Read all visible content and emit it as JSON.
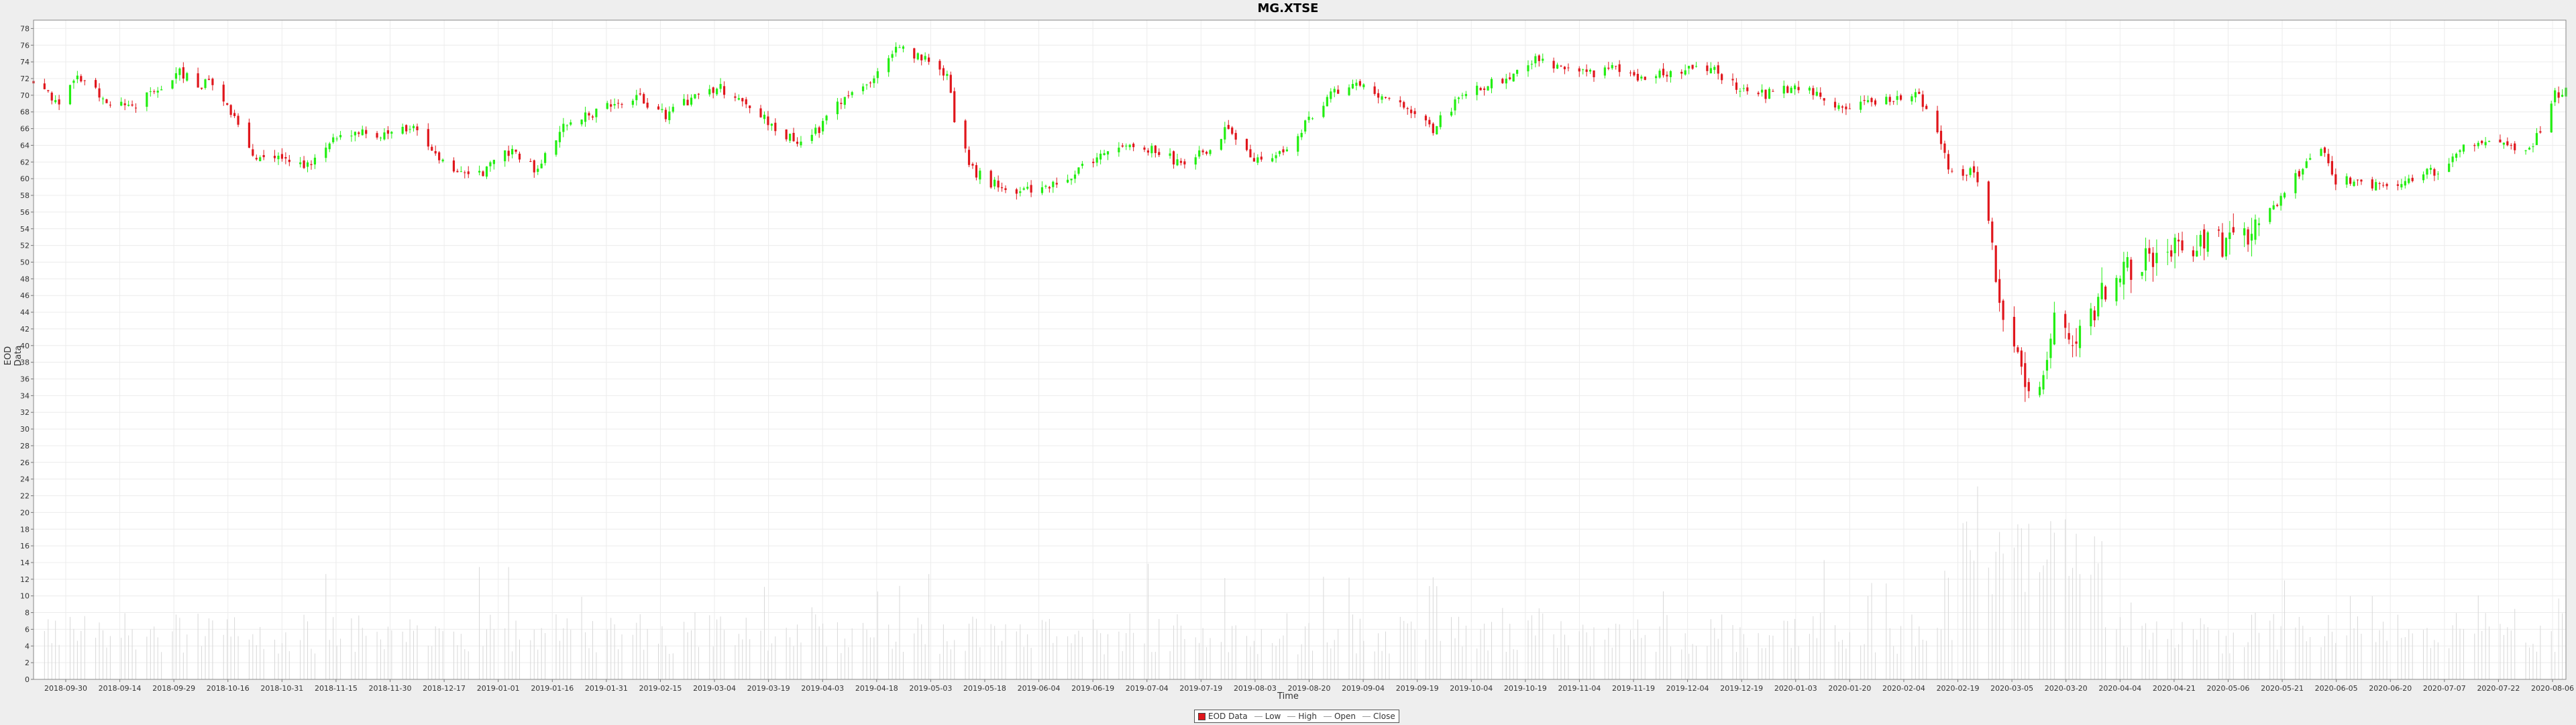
{
  "colors": {
    "up": "#22ee11",
    "down": "#e0161c",
    "volume": "#d8d8d8",
    "grid": "#ececec",
    "plot_bg": "#ffffff",
    "axis": "#777777"
  },
  "chart_data": {
    "type": "candlestick",
    "title": "MG.XTSE",
    "xlabel": "Time",
    "ylabel": "EOD Data",
    "ylim": [
      0,
      79
    ],
    "y_ticks": [
      0,
      2,
      4,
      6,
      8,
      10,
      12,
      14,
      16,
      18,
      20,
      22,
      24,
      26,
      28,
      30,
      32,
      34,
      36,
      38,
      40,
      42,
      44,
      46,
      48,
      50,
      52,
      54,
      56,
      58,
      60,
      62,
      64,
      66,
      68,
      70,
      72,
      74,
      76,
      78
    ],
    "x_start": "2018-09-21",
    "x_end": "2020-08-14",
    "x_ticks": [
      "2018-09-30",
      "2018-09-14",
      "2018-09-29",
      "2018-10-16",
      "2018-10-31",
      "2018-11-15",
      "2018-11-30",
      "2018-12-17",
      "2019-01-01",
      "2019-01-16",
      "2019-01-31",
      "2019-02-15",
      "2019-03-04",
      "2019-03-19",
      "2019-04-03",
      "2019-04-18",
      "2019-05-03",
      "2019-05-18",
      "2019-06-04",
      "2019-06-19",
      "2019-07-04",
      "2019-07-19",
      "2019-08-03",
      "2019-08-20",
      "2019-09-04",
      "2019-09-19",
      "2019-10-04",
      "2019-10-19",
      "2019-11-04",
      "2019-11-19",
      "2019-12-04",
      "2019-12-19",
      "2020-01-03",
      "2020-01-20",
      "2020-02-04",
      "2020-02-19",
      "2020-03-05",
      "2020-03-20",
      "2020-04-04",
      "2020-04-21",
      "2020-05-06",
      "2020-05-21",
      "2020-06-05",
      "2020-06-20",
      "2020-07-07",
      "2020-07-22",
      "2020-08-06"
    ],
    "legend": {
      "position": "bottom",
      "entries": [
        "EOD Data",
        "Low",
        "High",
        "Open",
        "Close"
      ]
    },
    "grid": true,
    "anchors": [
      [
        "2018-09-21",
        71.5
      ],
      [
        "2018-09-28",
        69.0
      ],
      [
        "2018-10-03",
        72.5
      ],
      [
        "2018-10-10",
        69.5
      ],
      [
        "2018-10-17",
        68.5
      ],
      [
        "2018-10-24",
        70.5
      ],
      [
        "2018-10-31",
        73.0
      ],
      [
        "2018-11-06",
        70.5
      ],
      [
        "2018-11-07",
        72.5
      ],
      [
        "2018-11-14",
        68.0
      ],
      [
        "2018-11-21",
        62.5
      ],
      [
        "2018-11-28",
        63.0
      ],
      [
        "2018-12-05",
        61.5
      ],
      [
        "2018-12-12",
        64.5
      ],
      [
        "2018-12-19",
        65.5
      ],
      [
        "2018-12-26",
        65.0
      ],
      [
        "2019-01-02",
        66.5
      ],
      [
        "2019-01-09",
        62.5
      ],
      [
        "2019-01-16",
        60.5
      ],
      [
        "2019-01-23",
        61.0
      ],
      [
        "2019-01-30",
        63.5
      ],
      [
        "2019-02-06",
        61.0
      ],
      [
        "2019-02-13",
        66.5
      ],
      [
        "2019-02-20",
        67.5
      ],
      [
        "2019-02-27",
        69.0
      ],
      [
        "2019-03-06",
        69.5
      ],
      [
        "2019-03-13",
        67.5
      ],
      [
        "2019-03-20",
        69.5
      ],
      [
        "2019-03-27",
        71.0
      ],
      [
        "2019-04-03",
        69.5
      ],
      [
        "2019-04-10",
        67.0
      ],
      [
        "2019-04-17",
        64.5
      ],
      [
        "2019-04-24",
        66.0
      ],
      [
        "2019-05-01",
        70.0
      ],
      [
        "2019-05-08",
        72.0
      ],
      [
        "2019-05-15",
        75.5
      ],
      [
        "2019-05-22",
        74.5
      ],
      [
        "2019-05-29",
        72.0
      ],
      [
        "2019-06-01",
        65.0
      ],
      [
        "2019-06-05",
        61.0
      ],
      [
        "2019-06-12",
        59.0
      ],
      [
        "2019-06-19",
        58.5
      ],
      [
        "2019-06-26",
        59.0
      ],
      [
        "2019-07-03",
        60.5
      ],
      [
        "2019-07-10",
        63.0
      ],
      [
        "2019-07-17",
        64.5
      ],
      [
        "2019-07-24",
        63.5
      ],
      [
        "2019-07-31",
        62.0
      ],
      [
        "2019-08-07",
        63.0
      ],
      [
        "2019-08-14",
        66.0
      ],
      [
        "2019-08-21",
        62.5
      ],
      [
        "2019-08-28",
        63.0
      ],
      [
        "2019-09-04",
        66.5
      ],
      [
        "2019-09-11",
        70.0
      ],
      [
        "2019-09-18",
        71.0
      ],
      [
        "2019-09-25",
        70.0
      ],
      [
        "2019-10-02",
        68.0
      ],
      [
        "2019-10-09",
        66.0
      ],
      [
        "2019-10-16",
        69.5
      ],
      [
        "2019-10-23",
        71.0
      ],
      [
        "2019-10-30",
        72.5
      ],
      [
        "2019-11-06",
        74.5
      ],
      [
        "2019-11-13",
        73.5
      ],
      [
        "2019-11-20",
        72.5
      ],
      [
        "2019-11-27",
        73.5
      ],
      [
        "2019-12-04",
        71.5
      ],
      [
        "2019-12-11",
        72.5
      ],
      [
        "2019-12-18",
        73.5
      ],
      [
        "2019-12-25",
        73.0
      ],
      [
        "2020-01-01",
        70.5
      ],
      [
        "2020-01-08",
        70.0
      ],
      [
        "2020-01-15",
        71.0
      ],
      [
        "2020-01-22",
        70.0
      ],
      [
        "2020-01-29",
        68.5
      ],
      [
        "2020-02-05",
        69.0
      ],
      [
        "2020-02-12",
        69.5
      ],
      [
        "2020-02-19",
        70.0
      ],
      [
        "2020-02-24",
        65.0
      ],
      [
        "2020-02-28",
        60.5
      ],
      [
        "2020-03-05",
        61.0
      ],
      [
        "2020-03-09",
        55.0
      ],
      [
        "2020-03-12",
        46.0
      ],
      [
        "2020-03-16",
        40.0
      ],
      [
        "2020-03-18",
        36.0
      ],
      [
        "2020-03-23",
        35.5
      ],
      [
        "2020-03-27",
        43.0
      ],
      [
        "2020-04-02",
        41.0
      ],
      [
        "2020-04-09",
        46.0
      ],
      [
        "2020-04-16",
        49.0
      ],
      [
        "2020-04-23",
        51.0
      ],
      [
        "2020-04-30",
        51.5
      ],
      [
        "2020-05-07",
        53.0
      ],
      [
        "2020-05-14",
        52.0
      ],
      [
        "2020-05-21",
        54.0
      ],
      [
        "2020-05-28",
        57.5
      ],
      [
        "2020-06-04",
        62.0
      ],
      [
        "2020-06-08",
        64.0
      ],
      [
        "2020-06-12",
        59.5
      ],
      [
        "2020-06-19",
        60.0
      ],
      [
        "2020-06-26",
        58.5
      ],
      [
        "2020-07-03",
        60.0
      ],
      [
        "2020-07-10",
        61.0
      ],
      [
        "2020-07-17",
        63.5
      ],
      [
        "2020-07-24",
        64.5
      ],
      [
        "2020-07-31",
        63.5
      ],
      [
        "2020-08-05",
        64.0
      ],
      [
        "2020-08-11",
        70.0
      ],
      [
        "2020-08-14",
        70.5
      ]
    ],
    "volume_range": [
      0,
      20
    ]
  }
}
